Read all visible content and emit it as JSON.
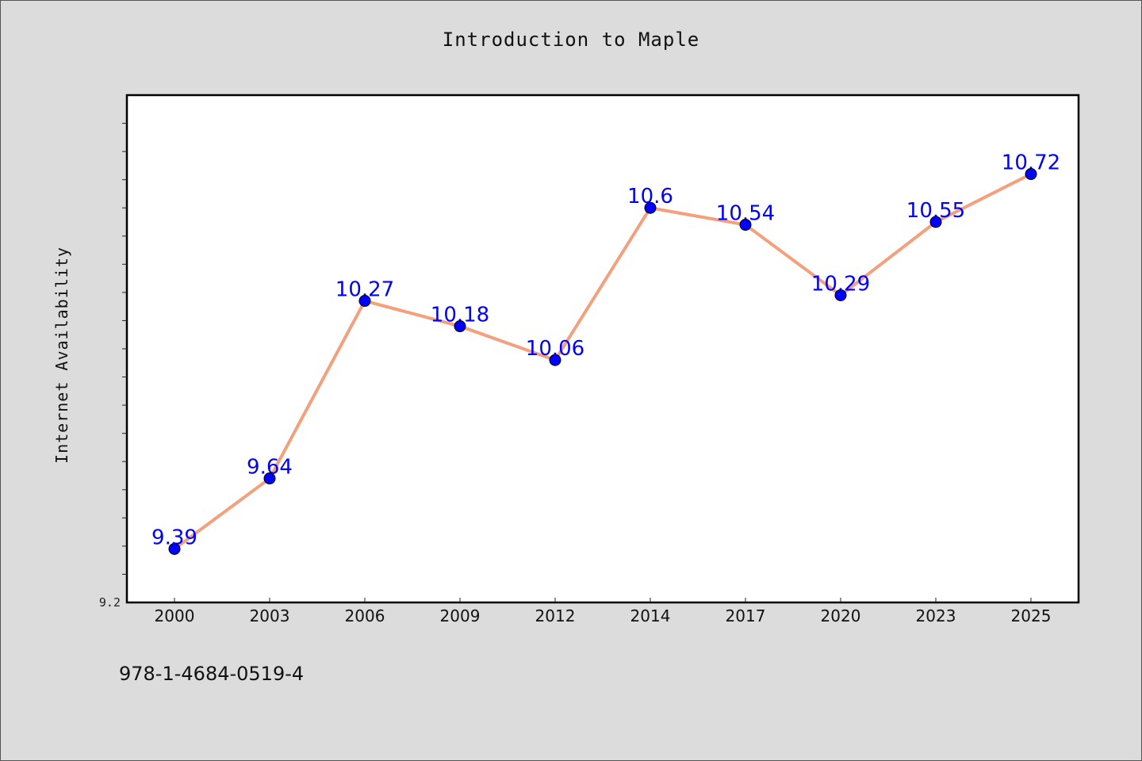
{
  "chart_data": {
    "type": "line",
    "title": "Introduction to Maple",
    "xlabel": "",
    "ylabel": "Internet Availability",
    "categories": [
      "2000",
      "2003",
      "2006",
      "2009",
      "2012",
      "2014",
      "2017",
      "2020",
      "2023",
      "2025"
    ],
    "series": [
      {
        "values": [
          9.39,
          9.64,
          10.27,
          10.18,
          10.06,
          10.6,
          10.54,
          10.29,
          10.55,
          10.72
        ],
        "data_labels": [
          "9.39",
          "9.64",
          "10.27",
          "10.18",
          "10.06",
          "10.6",
          "10.54",
          "10.29",
          "10.55",
          "10.72"
        ],
        "line_color": "#f4a07c",
        "marker_color": "#0000ff"
      }
    ],
    "ylim": [
      9.2,
      11.0
    ],
    "y_tick_labels": [
      "9.2"
    ],
    "grid": false,
    "legend": "none"
  },
  "footer": {
    "isbn": "978-1-4684-0519-4"
  },
  "colors": {
    "background": "#dcdcdc",
    "plot_area": "#ffffff",
    "label_text": "#0000ff"
  }
}
